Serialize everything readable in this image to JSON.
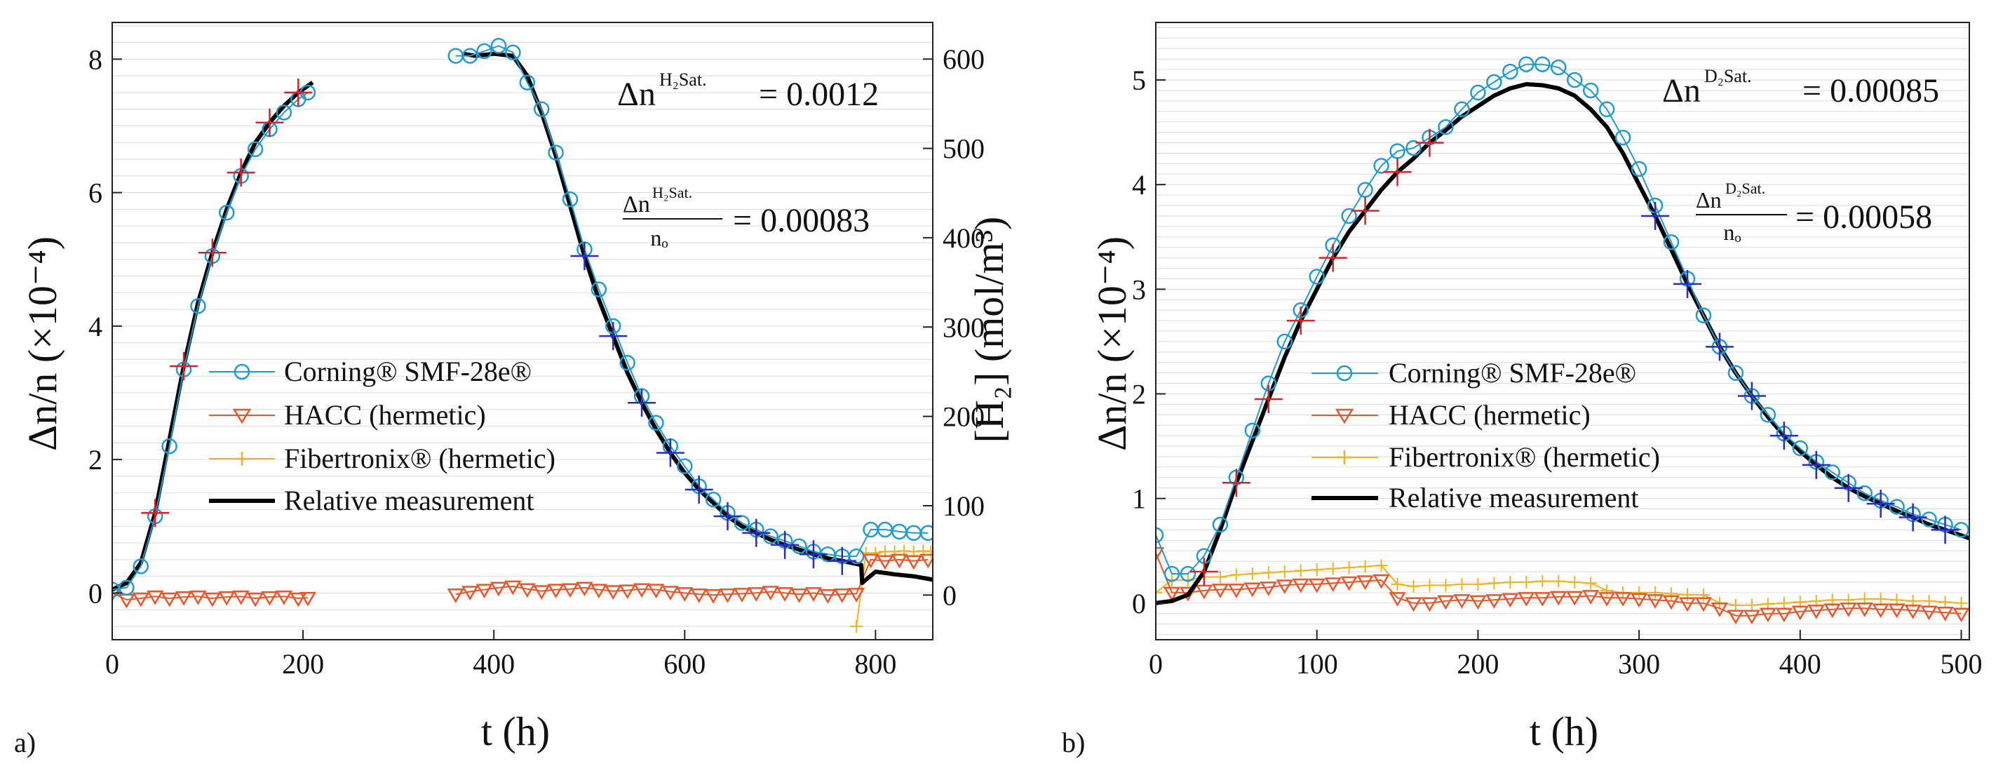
{
  "colors": {
    "corning": "#1f9bd1",
    "hacc": "#e8562a",
    "fiber": "#f2b21c",
    "relative": "#000000",
    "early_cross": "#dd1f26",
    "late_cross": "#2b2bc8",
    "grid": "#bdbdbd"
  },
  "chart_data": [
    {
      "type": "line",
      "panel_label": "a)",
      "xlabel": "t (h)",
      "ylabel": "Δn/n (×10⁻⁴)",
      "ylabel_right": "[H₂] (mol/m³)",
      "xlim": [
        0,
        860
      ],
      "ylim": [
        -0.7,
        8.55
      ],
      "ylim_right": [
        -50,
        641
      ],
      "xticks": [
        0,
        200,
        400,
        600,
        800
      ],
      "yticks": [
        0,
        2,
        4,
        6,
        8
      ],
      "yticks_right": [
        0,
        100,
        200,
        300,
        400,
        500,
        600
      ],
      "annotations": {
        "sat_label": "Δn",
        "sat_sup": "H₂Sat.",
        "sat_value": "= 0.0012",
        "frac_num": "Δn",
        "frac_num_sup": "H₂Sat.",
        "frac_den": "nₒ",
        "frac_value": "= 0.00083"
      },
      "legend": [
        "Corning® SMF-28e®",
        "HACC (hermetic)",
        "Fibertronix® (hermetic)",
        "Relative measurement"
      ],
      "series": [
        {
          "name": "Corning® SMF-28e®",
          "x": [
            0,
            15,
            30,
            45,
            60,
            75,
            90,
            105,
            120,
            135,
            150,
            165,
            180,
            195,
            205,
            360,
            375,
            390,
            405,
            420,
            435,
            450,
            465,
            480,
            495,
            510,
            525,
            540,
            555,
            570,
            585,
            600,
            615,
            630,
            645,
            660,
            675,
            690,
            705,
            720,
            735,
            750,
            765,
            780,
            795,
            810,
            825,
            840,
            855
          ],
          "y": [
            0.05,
            0.08,
            0.4,
            1.15,
            2.2,
            3.35,
            4.3,
            5.05,
            5.7,
            6.25,
            6.65,
            6.95,
            7.2,
            7.4,
            7.5,
            8.05,
            8.05,
            8.12,
            8.2,
            8.1,
            7.65,
            7.25,
            6.6,
            5.9,
            5.15,
            4.55,
            4.0,
            3.45,
            2.95,
            2.55,
            2.2,
            1.9,
            1.6,
            1.4,
            1.2,
            1.05,
            0.95,
            0.85,
            0.78,
            0.7,
            0.62,
            0.58,
            0.55,
            0.55,
            0.95,
            0.95,
            0.92,
            0.9,
            0.9
          ]
        },
        {
          "name": "HACC (hermetic)",
          "x": [
            0,
            15,
            30,
            45,
            60,
            75,
            90,
            105,
            120,
            135,
            150,
            165,
            180,
            195,
            205,
            360,
            375,
            390,
            405,
            420,
            435,
            450,
            465,
            480,
            495,
            510,
            525,
            540,
            555,
            570,
            585,
            600,
            615,
            630,
            645,
            660,
            675,
            690,
            705,
            720,
            735,
            750,
            765,
            780,
            795,
            810,
            825,
            840,
            855
          ],
          "y": [
            0.0,
            -0.1,
            -0.08,
            -0.05,
            -0.08,
            -0.06,
            -0.05,
            -0.08,
            -0.06,
            -0.05,
            -0.08,
            -0.06,
            -0.05,
            -0.08,
            -0.07,
            -0.02,
            0.02,
            0.05,
            0.08,
            0.1,
            0.06,
            0.03,
            0.05,
            0.06,
            0.08,
            0.05,
            0.03,
            0.04,
            0.06,
            0.05,
            0.02,
            0.0,
            -0.02,
            -0.03,
            -0.02,
            -0.01,
            0.0,
            0.02,
            0.0,
            -0.02,
            0.0,
            -0.03,
            -0.02,
            -0.01,
            0.5,
            0.48,
            0.5,
            0.48,
            0.5
          ]
        },
        {
          "name": "Fibertronix® (hermetic)",
          "x": [
            780,
            790,
            800,
            810,
            820,
            830,
            840,
            850,
            858
          ],
          "y": [
            -0.5,
            0.6,
            0.6,
            0.62,
            0.62,
            0.63,
            0.62,
            0.63,
            0.62
          ]
        },
        {
          "name": "Relative measurement",
          "x": [
            0,
            15,
            30,
            45,
            60,
            75,
            90,
            105,
            120,
            135,
            150,
            165,
            180,
            195,
            210,
            368,
            380,
            400,
            420,
            435,
            450,
            465,
            480,
            495,
            510,
            525,
            540,
            555,
            570,
            585,
            600,
            615,
            630,
            645,
            660,
            675,
            690,
            705,
            720,
            735,
            750,
            765,
            785,
            786,
            800,
            820,
            840,
            860
          ],
          "y": [
            0.05,
            0.15,
            0.45,
            1.2,
            2.3,
            3.4,
            4.35,
            5.1,
            5.75,
            6.3,
            6.75,
            7.05,
            7.3,
            7.5,
            7.65,
            8.08,
            8.05,
            8.08,
            8.05,
            7.75,
            7.2,
            6.55,
            5.8,
            5.05,
            4.4,
            3.85,
            3.3,
            2.85,
            2.45,
            2.1,
            1.8,
            1.55,
            1.35,
            1.15,
            1.0,
            0.9,
            0.8,
            0.72,
            0.65,
            0.58,
            0.52,
            0.48,
            0.42,
            0.15,
            0.32,
            0.28,
            0.25,
            0.2
          ]
        }
      ]
    },
    {
      "type": "line",
      "panel_label": "b)",
      "xlabel": "t (h)",
      "ylabel": "Δn/n (×10⁻⁴)",
      "xlim": [
        0,
        505
      ],
      "ylim": [
        -0.35,
        5.55
      ],
      "xticks": [
        0,
        100,
        200,
        300,
        400,
        500
      ],
      "yticks": [
        0,
        1,
        2,
        3,
        4,
        5
      ],
      "annotations": {
        "sat_label": "Δn",
        "sat_sup": "D₂Sat.",
        "sat_value": "= 0.00085",
        "frac_num": "Δn",
        "frac_num_sup": "D₂Sat.",
        "frac_den": "nₒ",
        "frac_value": "= 0.00058"
      },
      "legend": [
        "Corning® SMF-28e®",
        "HACC (hermetic)",
        "Fibertronix® (hermetic)",
        "Relative measurement"
      ],
      "series": [
        {
          "name": "Corning® SMF-28e®",
          "x": [
            0,
            10,
            20,
            30,
            40,
            50,
            60,
            70,
            80,
            90,
            100,
            110,
            120,
            130,
            140,
            150,
            160,
            170,
            180,
            190,
            200,
            210,
            220,
            230,
            240,
            250,
            260,
            270,
            280,
            290,
            300,
            310,
            320,
            330,
            340,
            350,
            360,
            370,
            380,
            390,
            400,
            410,
            420,
            430,
            440,
            450,
            460,
            470,
            480,
            490,
            500
          ],
          "y": [
            0.65,
            0.28,
            0.28,
            0.45,
            0.75,
            1.2,
            1.65,
            2.1,
            2.5,
            2.8,
            3.12,
            3.42,
            3.7,
            3.95,
            4.18,
            4.32,
            4.35,
            4.45,
            4.55,
            4.72,
            4.88,
            4.98,
            5.08,
            5.15,
            5.15,
            5.12,
            5.0,
            4.9,
            4.72,
            4.45,
            4.15,
            3.8,
            3.45,
            3.1,
            2.75,
            2.45,
            2.2,
            1.98,
            1.8,
            1.62,
            1.48,
            1.35,
            1.25,
            1.15,
            1.05,
            0.98,
            0.92,
            0.85,
            0.8,
            0.75,
            0.7
          ]
        },
        {
          "name": "HACC (hermetic)",
          "x": [
            0,
            10,
            20,
            30,
            40,
            50,
            60,
            70,
            80,
            90,
            100,
            110,
            120,
            130,
            140,
            150,
            160,
            170,
            180,
            190,
            200,
            210,
            220,
            230,
            240,
            250,
            260,
            270,
            280,
            290,
            300,
            310,
            320,
            330,
            340,
            350,
            360,
            370,
            380,
            390,
            400,
            410,
            420,
            430,
            440,
            450,
            460,
            470,
            480,
            490,
            500
          ],
          "y": [
            0.48,
            0.1,
            0.1,
            0.12,
            0.13,
            0.13,
            0.14,
            0.15,
            0.17,
            0.18,
            0.18,
            0.19,
            0.2,
            0.21,
            0.22,
            0.05,
            0.0,
            0.0,
            0.02,
            0.03,
            0.02,
            0.03,
            0.04,
            0.05,
            0.05,
            0.06,
            0.06,
            0.07,
            0.05,
            0.05,
            0.04,
            0.03,
            0.02,
            0.0,
            0.0,
            -0.05,
            -0.12,
            -0.12,
            -0.1,
            -0.1,
            -0.08,
            -0.07,
            -0.06,
            -0.05,
            -0.05,
            -0.06,
            -0.06,
            -0.07,
            -0.08,
            -0.09,
            -0.1
          ]
        },
        {
          "name": "Fibertronix® (hermetic)",
          "x": [
            0,
            10,
            20,
            30,
            40,
            50,
            60,
            70,
            80,
            90,
            100,
            110,
            120,
            130,
            140,
            150,
            160,
            170,
            180,
            190,
            200,
            210,
            220,
            230,
            240,
            250,
            260,
            270,
            280,
            290,
            300,
            310,
            320,
            330,
            340,
            350,
            360,
            370,
            380,
            390,
            400,
            410,
            420,
            430,
            440,
            450,
            460,
            470,
            480,
            490,
            500
          ],
          "y": [
            0.1,
            0.22,
            0.22,
            0.25,
            0.25,
            0.27,
            0.28,
            0.29,
            0.3,
            0.31,
            0.32,
            0.33,
            0.34,
            0.35,
            0.36,
            0.18,
            0.16,
            0.17,
            0.17,
            0.18,
            0.18,
            0.19,
            0.2,
            0.2,
            0.21,
            0.21,
            0.2,
            0.19,
            0.12,
            0.1,
            0.1,
            0.1,
            0.09,
            0.08,
            0.08,
            0.0,
            -0.02,
            -0.02,
            -0.01,
            0.0,
            0.01,
            0.02,
            0.03,
            0.03,
            0.04,
            0.04,
            0.03,
            0.02,
            0.02,
            0.01,
            0.0
          ]
        },
        {
          "name": "Relative measurement",
          "x": [
            0,
            10,
            20,
            30,
            40,
            50,
            60,
            70,
            80,
            90,
            100,
            110,
            120,
            130,
            140,
            150,
            160,
            170,
            180,
            190,
            200,
            210,
            220,
            230,
            240,
            250,
            260,
            270,
            280,
            290,
            300,
            310,
            320,
            330,
            340,
            350,
            360,
            370,
            380,
            390,
            400,
            410,
            420,
            430,
            440,
            450,
            460,
            470,
            480,
            490,
            505
          ],
          "y": [
            0.0,
            0.02,
            0.08,
            0.3,
            0.7,
            1.15,
            1.55,
            1.95,
            2.35,
            2.7,
            3.0,
            3.3,
            3.55,
            3.75,
            3.95,
            4.12,
            4.25,
            4.4,
            4.52,
            4.65,
            4.75,
            4.85,
            4.92,
            4.96,
            4.95,
            4.92,
            4.85,
            4.72,
            4.55,
            4.3,
            4.0,
            3.7,
            3.38,
            3.05,
            2.75,
            2.45,
            2.2,
            1.98,
            1.78,
            1.6,
            1.45,
            1.32,
            1.2,
            1.1,
            1.02,
            0.95,
            0.88,
            0.82,
            0.75,
            0.7,
            0.62
          ]
        }
      ]
    }
  ]
}
